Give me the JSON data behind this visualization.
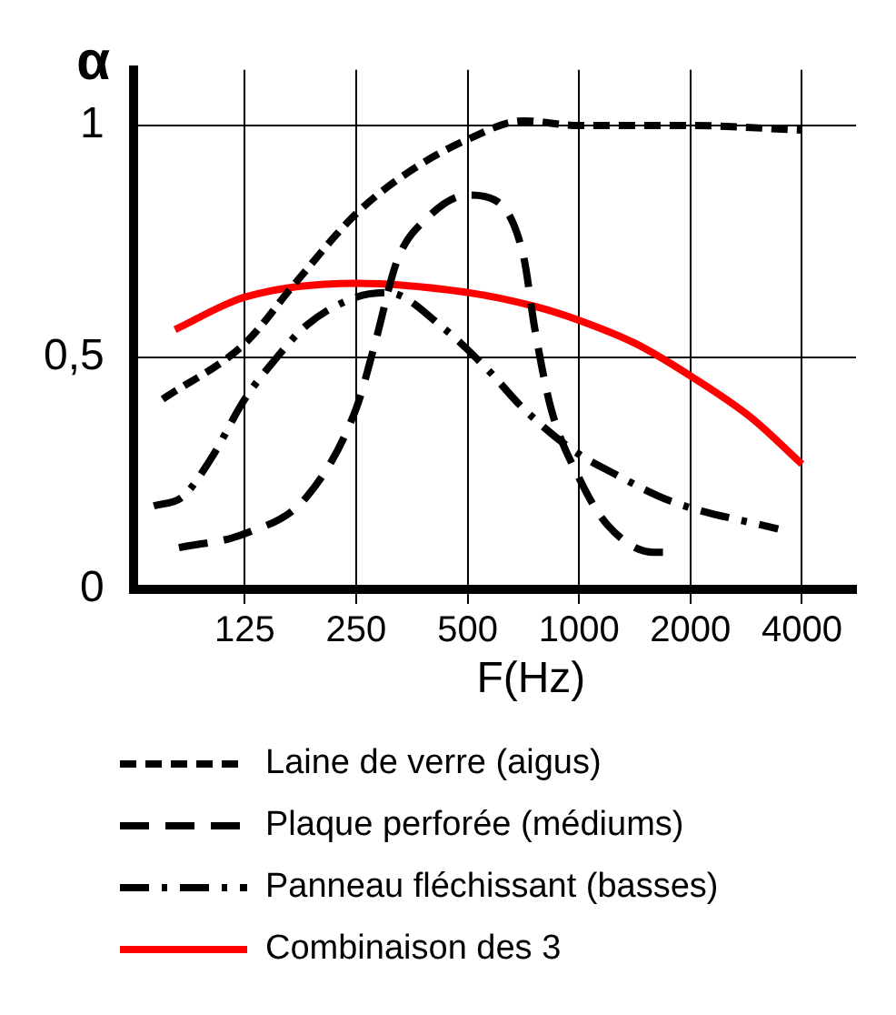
{
  "chart_data": {
    "type": "line",
    "xlabel": "F(Hz)",
    "ylabel": "α",
    "log": "x",
    "xlim": [
      62.5,
      5600
    ],
    "xticks": [
      125,
      250,
      500,
      1000,
      2000,
      4000
    ],
    "ylim": [
      0,
      1.12
    ],
    "yticks": [
      0,
      {
        "value": 0.5,
        "label": "0,5"
      },
      1
    ],
    "grid": true,
    "legend": "bottom",
    "marker": "none",
    "series": [
      {
        "name": "Laine de verre (aigus)",
        "color": "#000000",
        "line_style": "dashed",
        "x": [
          75,
          125,
          171,
          250,
          347,
          500,
          707,
          1000,
          2000,
          4000
        ],
        "values": [
          0.41,
          0.53,
          0.66,
          0.81,
          0.9,
          0.97,
          1.01,
          1.0,
          1.0,
          0.99
        ]
      },
      {
        "name": "Plaque perforée (médiums)",
        "color": "#000000",
        "line_style": "longdash",
        "x": [
          83,
          125,
          184,
          250,
          281,
          323,
          388,
          500,
          590,
          707,
          760,
          840,
          1000,
          1190,
          1590,
          1770
        ],
        "values": [
          0.09,
          0.12,
          0.2,
          0.39,
          0.53,
          0.71,
          0.8,
          0.85,
          0.84,
          0.72,
          0.56,
          0.39,
          0.24,
          0.14,
          0.08,
          0.08
        ]
      },
      {
        "name": "Panneau fléchissant (basses)",
        "color": "#000000",
        "line_style": "dashdot",
        "x": [
          71,
          85,
          101,
          125,
          149,
          184,
          250,
          303,
          435,
          572,
          707,
          963,
          1240,
          1770,
          3450
        ],
        "values": [
          0.18,
          0.2,
          0.28,
          0.41,
          0.49,
          0.57,
          0.63,
          0.64,
          0.56,
          0.47,
          0.39,
          0.3,
          0.25,
          0.19,
          0.13
        ]
      },
      {
        "name": "Combinaison des 3",
        "color": "#ff0000",
        "line_style": "solid",
        "x": [
          81,
          125,
          250,
          500,
          760,
          1000,
          1420,
          2000,
          2920,
          4000
        ],
        "values": [
          0.56,
          0.63,
          0.66,
          0.64,
          0.61,
          0.58,
          0.53,
          0.46,
          0.37,
          0.27
        ]
      }
    ]
  }
}
